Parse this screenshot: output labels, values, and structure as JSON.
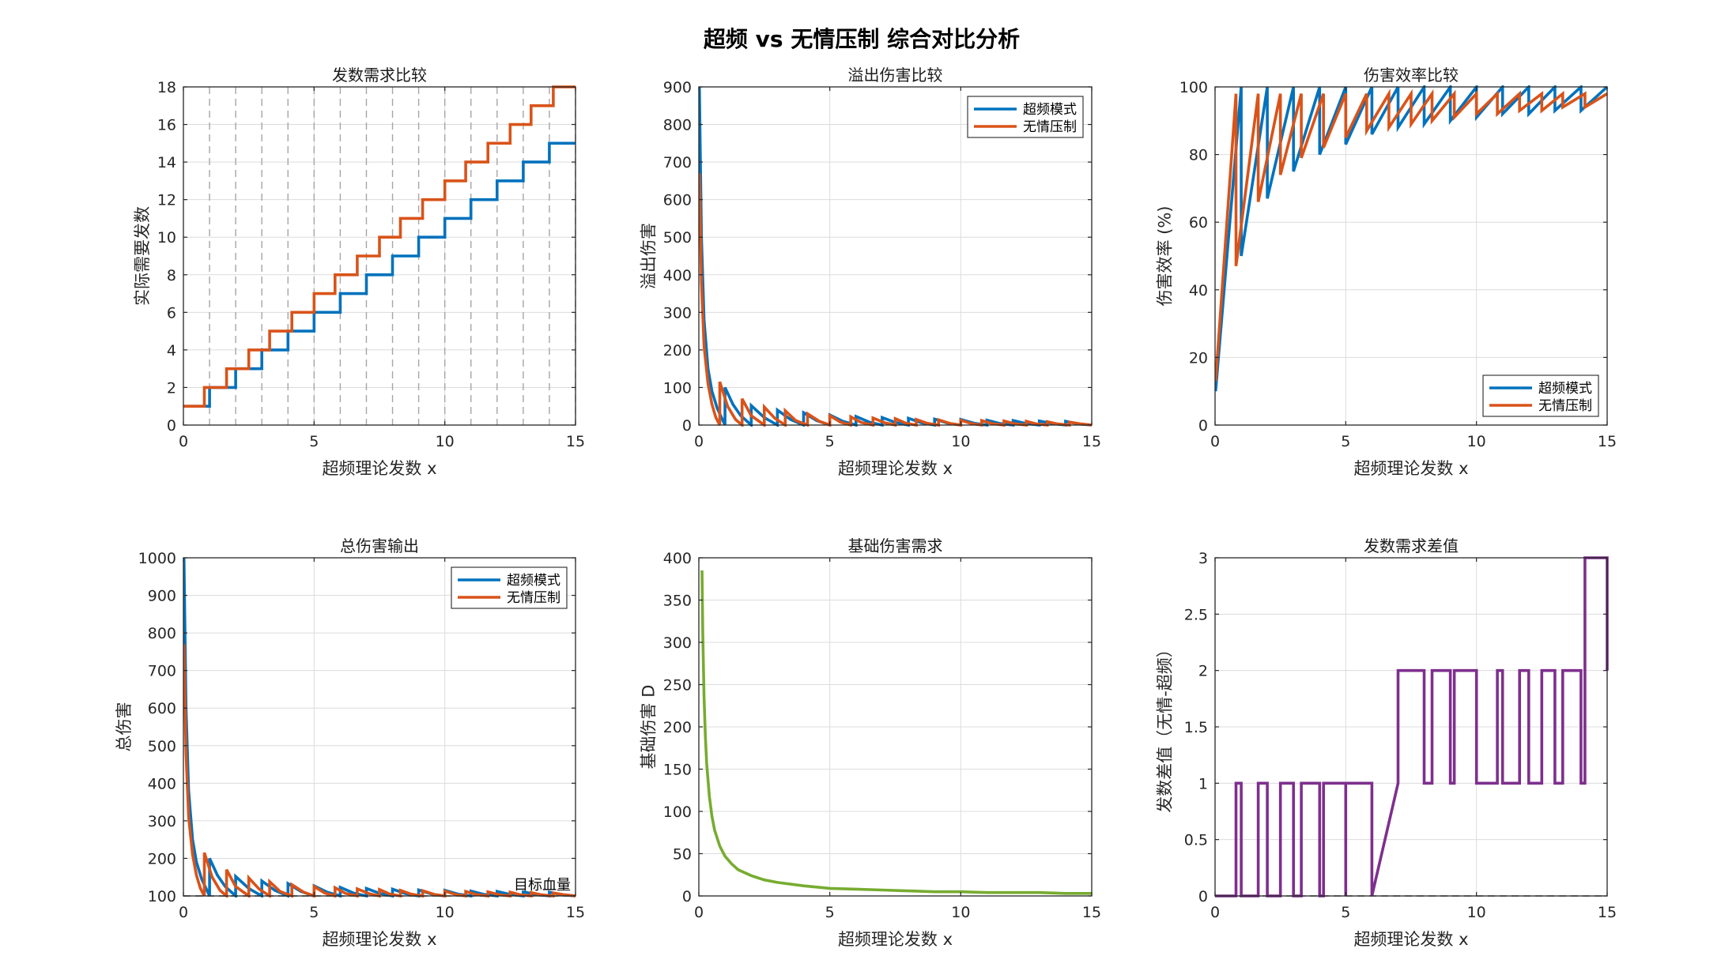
{
  "figure": {
    "title": "超频 vs 无情压制 综合对比分析"
  },
  "colors": {
    "series1": "#0072BD",
    "series2": "#D95319",
    "green": "#77AC30",
    "purple": "#7E2F8E",
    "grid": "#dcdcdc",
    "axis": "#262626"
  },
  "chart_data": [
    {
      "type": "line",
      "title": "发数需求比较",
      "xlabel": "超频理论发数 x",
      "ylabel": "实际需要发数",
      "xlim": [
        0,
        15
      ],
      "ylim": [
        0,
        18
      ],
      "xticks": [
        0,
        5,
        10,
        15
      ],
      "yticks": [
        0,
        2,
        4,
        6,
        8,
        10,
        12,
        14,
        16,
        18
      ],
      "vlines": [
        1,
        2,
        3,
        4,
        5,
        6,
        7,
        8,
        9,
        10,
        11,
        12,
        13,
        14,
        15
      ],
      "series": [
        {
          "name": "超频模式",
          "x": [
            0,
            1,
            1,
            2,
            2,
            3,
            3,
            4,
            4,
            5,
            5,
            6,
            6,
            7,
            7,
            8,
            8,
            9,
            9,
            10,
            10,
            11,
            11,
            12,
            12,
            13,
            13,
            14,
            14,
            15
          ],
          "y": [
            1,
            1,
            2,
            2,
            3,
            3,
            4,
            4,
            5,
            5,
            6,
            6,
            7,
            7,
            8,
            8,
            9,
            9,
            10,
            10,
            11,
            11,
            12,
            12,
            13,
            13,
            14,
            14,
            15,
            15
          ]
        },
        {
          "name": "无情压制",
          "x": [
            0,
            0.8,
            0.8,
            1.65,
            1.65,
            2.5,
            2.5,
            3.3,
            3.3,
            4.15,
            4.15,
            5,
            5,
            5.8,
            5.8,
            6.65,
            6.65,
            7.5,
            7.5,
            8.3,
            8.3,
            9.15,
            9.15,
            10,
            10,
            10.8,
            10.8,
            11.65,
            11.65,
            12.5,
            12.5,
            13.3,
            13.3,
            14.15,
            14.15,
            15,
            15
          ],
          "y": [
            1,
            1,
            2,
            2,
            3,
            3,
            4,
            4,
            5,
            5,
            6,
            6,
            7,
            7,
            8,
            8,
            9,
            9,
            10,
            10,
            11,
            11,
            12,
            12,
            13,
            13,
            14,
            14,
            15,
            15,
            16,
            16,
            17,
            17,
            18,
            18,
            18
          ]
        }
      ]
    },
    {
      "type": "line",
      "title": "溢出伤害比较",
      "xlabel": "超频理论发数 x",
      "ylabel": "溢出伤害",
      "xlim": [
        0,
        15
      ],
      "ylim": [
        0,
        900
      ],
      "xticks": [
        0,
        5,
        10,
        15
      ],
      "yticks": [
        0,
        100,
        200,
        300,
        400,
        500,
        600,
        700,
        800,
        900
      ],
      "legend": [
        "超频模式",
        "无情压制"
      ],
      "series": [
        {
          "name": "超频模式",
          "x": [
            0.02,
            0.1,
            0.2,
            0.35,
            0.5,
            0.7,
            0.9,
            1,
            1,
            1.3,
            1.6,
            2,
            2,
            2.5,
            3,
            3,
            3.5,
            4,
            4,
            4.5,
            5,
            5,
            5.5,
            6,
            6,
            6.5,
            7,
            7,
            7.5,
            8,
            8,
            8.5,
            9,
            9,
            9.5,
            10,
            10,
            10.5,
            11,
            11,
            11.5,
            12,
            12,
            12.5,
            13,
            13,
            13.5,
            14,
            14,
            14.5,
            15
          ],
          "y": [
            900,
            500,
            280,
            150,
            90,
            45,
            15,
            0,
            100,
            55,
            25,
            0,
            52,
            20,
            0,
            40,
            15,
            0,
            33,
            12,
            0,
            27,
            10,
            0,
            23,
            8,
            0,
            20,
            7,
            0,
            18,
            6,
            0,
            16,
            5,
            0,
            15,
            5,
            0,
            13,
            4,
            0,
            12,
            4,
            0,
            11,
            4,
            0,
            10,
            3,
            0
          ]
        },
        {
          "name": "无情压制",
          "x": [
            0.02,
            0.1,
            0.2,
            0.35,
            0.5,
            0.65,
            0.8,
            0.8,
            1.1,
            1.4,
            1.65,
            1.65,
            2,
            2.5,
            2.5,
            2.9,
            3.3,
            3.3,
            3.7,
            4.15,
            4.15,
            4.6,
            5,
            5,
            5.4,
            5.8,
            5.8,
            6.2,
            6.65,
            6.65,
            7.1,
            7.5,
            7.5,
            7.9,
            8.3,
            8.3,
            8.7,
            9.15,
            9.15,
            9.6,
            10,
            10,
            10.4,
            10.8,
            10.8,
            11.2,
            11.65,
            11.65,
            12.1,
            12.5,
            12.5,
            12.9,
            13.3,
            13.3,
            13.7,
            14.15,
            14.15,
            14.6,
            15
          ],
          "y": [
            670,
            380,
            210,
            110,
            55,
            20,
            0,
            115,
            50,
            15,
            0,
            70,
            25,
            0,
            48,
            18,
            0,
            38,
            12,
            0,
            30,
            10,
            0,
            25,
            8,
            0,
            22,
            7,
            0,
            19,
            6,
            0,
            17,
            5,
            0,
            15,
            5,
            0,
            14,
            4,
            0,
            13,
            4,
            0,
            12,
            4,
            0,
            11,
            3,
            0,
            10,
            3,
            0,
            9,
            3,
            0,
            8,
            3,
            0
          ]
        }
      ]
    },
    {
      "type": "line",
      "title": "伤害效率比较",
      "xlabel": "超频理论发数 x",
      "ylabel": "伤害效率 (%)",
      "xlim": [
        0,
        15
      ],
      "ylim": [
        0,
        100
      ],
      "xticks": [
        0,
        5,
        10,
        15
      ],
      "yticks": [
        0,
        20,
        40,
        60,
        80,
        100
      ],
      "legend": [
        "超频模式",
        "无情压制"
      ],
      "series": [
        {
          "name": "超频模式",
          "x": [
            0.02,
            1,
            1,
            2,
            2,
            3,
            3,
            4,
            4,
            5,
            5,
            6,
            6,
            7,
            7,
            8,
            8,
            9,
            9,
            10,
            10,
            11,
            11,
            12,
            12,
            13,
            13,
            14,
            14,
            15
          ],
          "y": [
            10,
            100,
            50,
            100,
            67,
            100,
            75,
            100,
            80,
            100,
            83,
            100,
            86,
            100,
            88,
            100,
            89,
            100,
            90,
            100,
            91,
            100,
            92,
            100,
            92,
            100,
            93,
            100,
            93,
            100
          ]
        },
        {
          "name": "无情压制",
          "x": [
            0.02,
            0.8,
            0.8,
            1.65,
            1.65,
            2.5,
            2.5,
            3.3,
            3.3,
            4.15,
            4.15,
            5,
            5,
            5.8,
            5.8,
            6.65,
            6.65,
            7.5,
            7.5,
            8.3,
            8.3,
            9.15,
            9.15,
            10,
            10,
            10.8,
            10.8,
            11.65,
            11.65,
            12.5,
            12.5,
            13.3,
            13.3,
            14.15,
            14.15,
            15
          ],
          "y": [
            13,
            98,
            47,
            98,
            66,
            98,
            74,
            98,
            79,
            98,
            82,
            98,
            85,
            98,
            87,
            98,
            88,
            98,
            89,
            98,
            90,
            98,
            91,
            98,
            92,
            98,
            92,
            98,
            93,
            98,
            93,
            98,
            94,
            98,
            94,
            98
          ]
        }
      ]
    },
    {
      "type": "line",
      "title": "总伤害输出",
      "xlabel": "超频理论发数 x",
      "ylabel": "总伤害",
      "xlim": [
        0,
        15
      ],
      "ylim": [
        100,
        1000
      ],
      "xticks": [
        0,
        5,
        10,
        15
      ],
      "yticks": [
        100,
        200,
        300,
        400,
        500,
        600,
        700,
        800,
        900,
        1000
      ],
      "legend": [
        "超频模式",
        "无情压制"
      ],
      "hline": {
        "y": 100,
        "label": "目标血量"
      },
      "series": [
        {
          "name": "超频模式",
          "x": [
            0.02,
            0.1,
            0.2,
            0.35,
            0.5,
            0.7,
            0.9,
            1,
            1,
            1.3,
            1.6,
            2,
            2,
            2.5,
            3,
            3,
            3.5,
            4,
            4,
            4.5,
            5,
            5,
            5.5,
            6,
            6,
            6.5,
            7,
            7,
            7.5,
            8,
            8,
            8.5,
            9,
            9,
            9.5,
            10,
            10,
            10.5,
            11,
            11,
            11.5,
            12,
            12,
            12.5,
            13,
            13,
            13.5,
            14,
            14,
            14.5,
            15
          ],
          "y": [
            1000,
            600,
            380,
            250,
            190,
            145,
            115,
            100,
            200,
            155,
            125,
            100,
            152,
            120,
            100,
            140,
            115,
            100,
            133,
            112,
            100,
            127,
            110,
            100,
            123,
            108,
            100,
            120,
            107,
            100,
            118,
            106,
            100,
            116,
            105,
            100,
            115,
            105,
            100,
            113,
            104,
            100,
            112,
            104,
            100,
            111,
            104,
            100,
            110,
            103,
            100
          ]
        },
        {
          "name": "无情压制",
          "x": [
            0.02,
            0.1,
            0.2,
            0.35,
            0.5,
            0.65,
            0.8,
            0.8,
            1.1,
            1.4,
            1.65,
            1.65,
            2,
            2.5,
            2.5,
            2.9,
            3.3,
            3.3,
            3.7,
            4.15,
            4.15,
            4.6,
            5,
            5,
            5.4,
            5.8,
            5.8,
            6.2,
            6.65,
            6.65,
            7.1,
            7.5,
            7.5,
            7.9,
            8.3,
            8.3,
            8.7,
            9.15,
            9.15,
            9.6,
            10,
            10,
            10.4,
            10.8,
            10.8,
            11.2,
            11.65,
            11.65,
            12.1,
            12.5,
            12.5,
            12.9,
            13.3,
            13.3,
            13.7,
            14.15,
            14.15,
            14.6,
            15
          ],
          "y": [
            770,
            480,
            310,
            210,
            155,
            120,
            100,
            215,
            150,
            115,
            100,
            170,
            125,
            100,
            148,
            118,
            100,
            138,
            112,
            100,
            130,
            110,
            100,
            125,
            108,
            100,
            122,
            107,
            100,
            119,
            106,
            100,
            117,
            105,
            100,
            115,
            105,
            100,
            114,
            104,
            100,
            113,
            104,
            100,
            112,
            104,
            100,
            111,
            103,
            100,
            110,
            103,
            100,
            109,
            103,
            100,
            108,
            103,
            100
          ]
        }
      ]
    },
    {
      "type": "line",
      "title": "基础伤害需求",
      "xlabel": "超频理论发数 x",
      "ylabel": "基础伤害 D",
      "xlim": [
        0,
        15
      ],
      "ylim": [
        0,
        400
      ],
      "xticks": [
        0,
        5,
        10,
        15
      ],
      "yticks": [
        0,
        50,
        100,
        150,
        200,
        250,
        300,
        350,
        400
      ],
      "series": [
        {
          "name": "基础伤害",
          "x": [
            0.12,
            0.15,
            0.2,
            0.25,
            0.3,
            0.4,
            0.5,
            0.6,
            0.8,
            1,
            1.25,
            1.5,
            2,
            2.5,
            3,
            4,
            5,
            6,
            7,
            8,
            9,
            10,
            11,
            12,
            13,
            14,
            15
          ],
          "y": [
            385,
            310,
            235,
            188,
            157,
            118,
            94,
            78,
            59,
            47,
            38,
            31,
            24,
            19,
            16,
            12,
            9,
            8,
            7,
            6,
            5,
            5,
            4,
            4,
            4,
            3,
            3
          ]
        }
      ]
    },
    {
      "type": "line",
      "title": "发数需求差值",
      "xlabel": "超频理论发数 x",
      "ylabel": "发数差值（无情-超频）",
      "xlim": [
        0,
        15
      ],
      "ylim": [
        0,
        3
      ],
      "xticks": [
        0,
        5,
        10,
        15
      ],
      "yticks": [
        0,
        0.5,
        1,
        1.5,
        2,
        2.5,
        3
      ],
      "yticklabels": [
        "0",
        "0.5",
        "1",
        "1.5",
        "2",
        "2.5",
        "3"
      ],
      "series": [
        {
          "name": "差值",
          "x": [
            0,
            0.8,
            0.8,
            1,
            1,
            1.65,
            1.65,
            2,
            2,
            2.5,
            2.5,
            3,
            3,
            3.3,
            3.3,
            4,
            4,
            4.15,
            4.15,
            5,
            5,
            5,
            6,
            6,
            7,
            7,
            7,
            8,
            8,
            8.3,
            8.3,
            9,
            9,
            9.15,
            9.15,
            10,
            10,
            10.8,
            10.8,
            11,
            11,
            11.65,
            11.65,
            12,
            12,
            12.5,
            12.5,
            13,
            13,
            13.3,
            13.3,
            14,
            14,
            14.15,
            14.15,
            15,
            15
          ],
          "y": [
            0,
            0,
            1,
            1,
            0,
            0,
            1,
            1,
            0,
            0,
            1,
            1,
            0,
            0,
            1,
            1,
            0,
            0,
            1,
            1,
            0,
            1,
            1,
            0,
            1,
            1,
            2,
            2,
            1,
            1,
            2,
            2,
            1,
            1,
            2,
            2,
            1,
            1,
            2,
            2,
            1,
            1,
            2,
            2,
            1,
            1,
            2,
            2,
            1,
            1,
            2,
            2,
            1,
            1,
            3,
            3,
            2
          ]
        }
      ]
    }
  ]
}
